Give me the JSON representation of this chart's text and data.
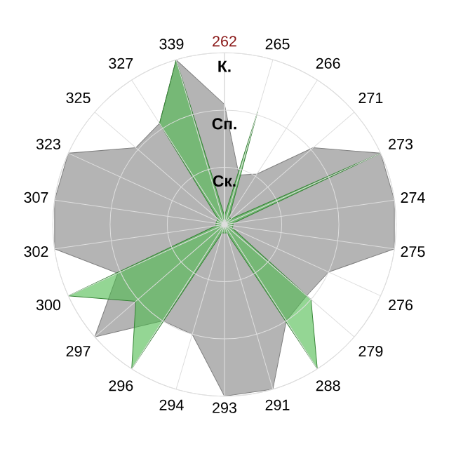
{
  "chart_data": {
    "type": "radar",
    "categories": [
      "262",
      "265",
      "266",
      "271",
      "273",
      "274",
      "275",
      "276",
      "279",
      "288",
      "291",
      "293",
      "294",
      "296",
      "297",
      "300",
      "302",
      "307",
      "323",
      "325",
      "327",
      "339"
    ],
    "ylim": [
      0,
      3
    ],
    "yticks": [
      {
        "value": 1,
        "label": "Ск."
      },
      {
        "value": 2,
        "label": "Сп."
      },
      {
        "value": 3,
        "label": "К."
      }
    ],
    "grid": true,
    "series": [
      {
        "color": "#b4b4b4",
        "values": [
          2.1,
          0.9,
          1.05,
          2.05,
          3,
          3,
          3,
          2,
          1.9,
          2,
          3,
          3,
          2,
          2,
          3,
          2.05,
          3,
          3,
          3,
          2.05,
          2.1,
          3
        ]
      },
      {
        "color": "#4cbb4c",
        "values": [
          0.15,
          2.05,
          0.15,
          0.15,
          3,
          0.15,
          0.15,
          0.15,
          2,
          3,
          0.15,
          0.15,
          0.15,
          3,
          2.05,
          3,
          0.15,
          0.15,
          0.15,
          0.15,
          2.1,
          3
        ]
      }
    ]
  }
}
